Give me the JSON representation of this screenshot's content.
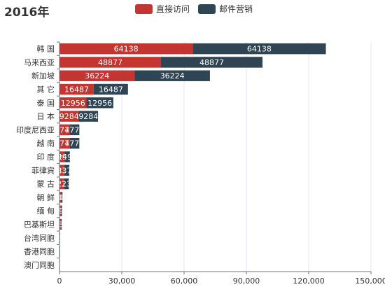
{
  "chart_data": {
    "type": "bar",
    "orientation": "horizontal",
    "stacked": true,
    "title": "2016年",
    "categories": [
      "韩 国",
      "马来西亚",
      "新加坡",
      "其 它",
      "泰 国",
      "日 本",
      "印度尼西亚",
      "越 南",
      "印 度",
      "菲律宾",
      "蒙 古",
      "朝 鲜",
      "缅 甸",
      "巴基斯坦",
      "台湾同胞",
      "香港同胞",
      "澳门同胞"
    ],
    "series": [
      {
        "name": "直接访问",
        "color": "#c23531",
        "values": [
          64138,
          48877,
          36224,
          16487,
          12956,
          9284,
          4779,
          4778,
          2499,
          2371,
          2237,
          717,
          594,
          534,
          136,
          132,
          111
        ]
      },
      {
        "name": "邮件营销",
        "color": "#2f4554",
        "values": [
          64138,
          48877,
          36224,
          16487,
          12956,
          9284,
          4779,
          4778,
          2499,
          2371,
          2237,
          717,
          594,
          534,
          136,
          132,
          111
        ]
      }
    ],
    "xlim": [
      0,
      150000
    ],
    "x_ticks": [
      0,
      30000,
      60000,
      90000,
      120000,
      150000
    ],
    "x_tick_labels": [
      "0",
      "30,000",
      "60,000",
      "90,000",
      "120,000",
      "150,000"
    ],
    "grid": true,
    "legend_position": "top-center"
  }
}
